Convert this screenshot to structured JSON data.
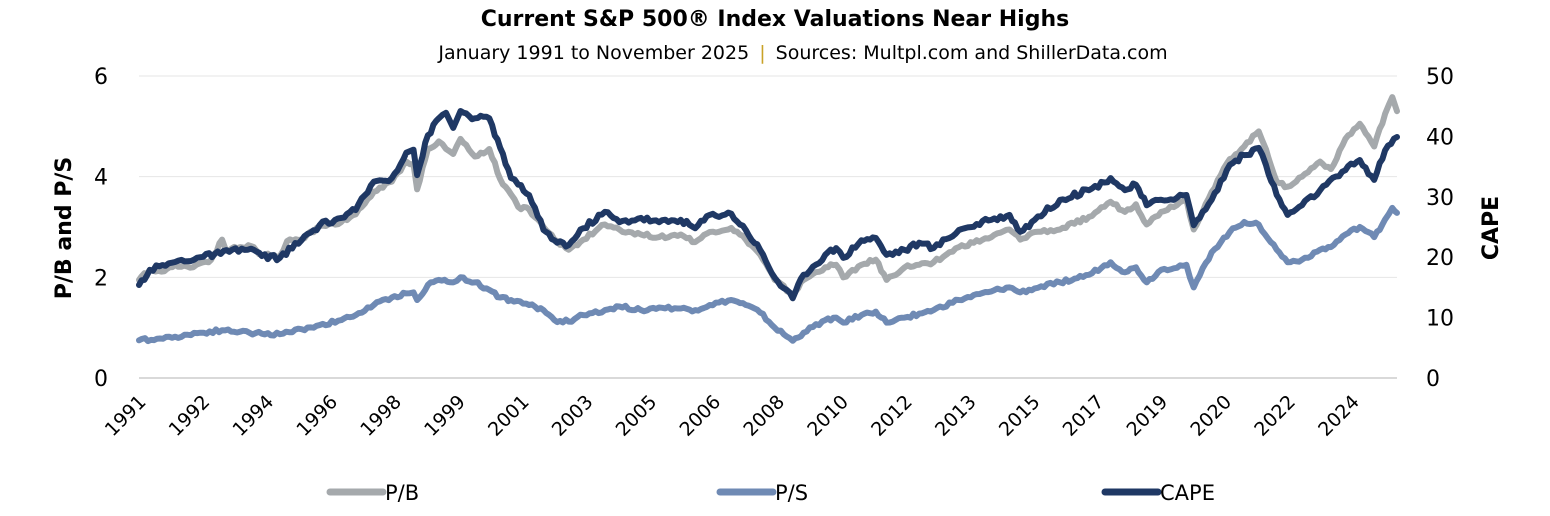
{
  "chart_data": {
    "type": "line",
    "title": "Current S&P 500® Index Valuations Near Highs",
    "subtitle_left": "January 1991 to November 2025",
    "subtitle_separator": "|",
    "subtitle_right": "Sources: Multpl.com and ShillerData.com",
    "ylabel_left": "P/B and P/S",
    "ylabel_right": "CAPE",
    "ylim_left": [
      0,
      6
    ],
    "ylim_right": [
      0,
      50
    ],
    "yticks_left": [
      "0",
      "2",
      "4",
      "6"
    ],
    "yticks_right": [
      "0",
      "10",
      "20",
      "30",
      "40",
      "50"
    ],
    "xlim": [
      1991.0,
      2025.83
    ],
    "xtick_labels": [
      "1991",
      "1992",
      "1994",
      "1996",
      "1998",
      "1999",
      "2001",
      "2003",
      "2005",
      "2006",
      "2008",
      "2010",
      "2012",
      "2013",
      "2015",
      "2017",
      "2019",
      "2020",
      "2022",
      "2024"
    ],
    "grid": true,
    "legend_position": "bottom",
    "colors": {
      "separator": "#C9A227",
      "grid": "#e6e6e6",
      "baseline": "#d9d9d9"
    },
    "series": [
      {
        "name": "P/B",
        "axis": "left",
        "color": "#A5A9AC",
        "points": [
          [
            1991.0,
            1.95
          ],
          [
            1991.3,
            2.15
          ],
          [
            1991.7,
            2.12
          ],
          [
            1992.0,
            2.25
          ],
          [
            1992.5,
            2.2
          ],
          [
            1992.7,
            2.28
          ],
          [
            1993.0,
            2.35
          ],
          [
            1993.3,
            2.75
          ],
          [
            1993.4,
            2.55
          ],
          [
            1993.8,
            2.6
          ],
          [
            1994.1,
            2.62
          ],
          [
            1994.4,
            2.45
          ],
          [
            1994.9,
            2.42
          ],
          [
            1995.1,
            2.72
          ],
          [
            1995.5,
            2.75
          ],
          [
            1996.0,
            3.02
          ],
          [
            1996.6,
            3.1
          ],
          [
            1997.0,
            3.25
          ],
          [
            1997.5,
            3.7
          ],
          [
            1998.0,
            3.9
          ],
          [
            1998.4,
            4.3
          ],
          [
            1998.6,
            4.25
          ],
          [
            1998.7,
            3.75
          ],
          [
            1999.0,
            4.55
          ],
          [
            1999.3,
            4.7
          ],
          [
            1999.5,
            4.55
          ],
          [
            1999.7,
            4.45
          ],
          [
            1999.9,
            4.75
          ],
          [
            2000.3,
            4.4
          ],
          [
            2000.7,
            4.55
          ],
          [
            2001.0,
            3.95
          ],
          [
            2001.3,
            3.65
          ],
          [
            2001.5,
            3.4
          ],
          [
            2001.8,
            3.35
          ],
          [
            2002.2,
            3.0
          ],
          [
            2002.5,
            2.75
          ],
          [
            2002.9,
            2.55
          ],
          [
            2003.3,
            2.75
          ],
          [
            2003.9,
            3.05
          ],
          [
            2004.3,
            2.95
          ],
          [
            2004.9,
            2.85
          ],
          [
            2005.4,
            2.8
          ],
          [
            2006.0,
            2.85
          ],
          [
            2006.4,
            2.7
          ],
          [
            2006.8,
            2.9
          ],
          [
            2007.4,
            2.98
          ],
          [
            2007.8,
            2.75
          ],
          [
            2008.2,
            2.45
          ],
          [
            2008.6,
            1.95
          ],
          [
            2009.1,
            1.65
          ],
          [
            2009.4,
            1.95
          ],
          [
            2010.0,
            2.2
          ],
          [
            2010.3,
            2.25
          ],
          [
            2010.5,
            2.0
          ],
          [
            2011.0,
            2.25
          ],
          [
            2011.4,
            2.35
          ],
          [
            2011.7,
            1.95
          ],
          [
            2012.2,
            2.2
          ],
          [
            2012.6,
            2.25
          ],
          [
            2013.0,
            2.3
          ],
          [
            2013.7,
            2.6
          ],
          [
            2014.6,
            2.8
          ],
          [
            2015.1,
            2.95
          ],
          [
            2015.4,
            2.75
          ],
          [
            2015.8,
            2.9
          ],
          [
            2016.5,
            2.95
          ],
          [
            2017.3,
            3.2
          ],
          [
            2017.9,
            3.5
          ],
          [
            2018.3,
            3.3
          ],
          [
            2018.6,
            3.45
          ],
          [
            2018.9,
            3.05
          ],
          [
            2019.3,
            3.3
          ],
          [
            2020.0,
            3.55
          ],
          [
            2020.2,
            2.95
          ],
          [
            2020.7,
            3.7
          ],
          [
            2021.2,
            4.35
          ],
          [
            2021.6,
            4.6
          ],
          [
            2022.0,
            4.9
          ],
          [
            2022.2,
            4.55
          ],
          [
            2022.5,
            3.9
          ],
          [
            2022.8,
            3.8
          ],
          [
            2023.2,
            4.0
          ],
          [
            2023.7,
            4.3
          ],
          [
            2024.0,
            4.15
          ],
          [
            2024.4,
            4.75
          ],
          [
            2024.8,
            5.05
          ],
          [
            2025.2,
            4.6
          ],
          [
            2025.5,
            5.25
          ],
          [
            2025.7,
            5.58
          ],
          [
            2025.83,
            5.3
          ]
        ]
      },
      {
        "name": "P/S",
        "axis": "left",
        "color": "#6F8AB4",
        "points": [
          [
            1991.0,
            0.75
          ],
          [
            1991.5,
            0.78
          ],
          [
            1992.0,
            0.82
          ],
          [
            1992.7,
            0.9
          ],
          [
            1993.3,
            0.95
          ],
          [
            1993.8,
            0.92
          ],
          [
            1994.4,
            0.88
          ],
          [
            1994.9,
            0.87
          ],
          [
            1995.5,
            0.97
          ],
          [
            1996.0,
            1.05
          ],
          [
            1996.6,
            1.15
          ],
          [
            1997.0,
            1.25
          ],
          [
            1997.5,
            1.45
          ],
          [
            1998.0,
            1.6
          ],
          [
            1998.4,
            1.68
          ],
          [
            1998.6,
            1.7
          ],
          [
            1998.7,
            1.55
          ],
          [
            1999.0,
            1.85
          ],
          [
            1999.3,
            1.95
          ],
          [
            1999.7,
            1.9
          ],
          [
            1999.9,
            2.0
          ],
          [
            2000.3,
            1.9
          ],
          [
            2000.7,
            1.75
          ],
          [
            2001.0,
            1.6
          ],
          [
            2001.3,
            1.55
          ],
          [
            2001.8,
            1.45
          ],
          [
            2002.2,
            1.35
          ],
          [
            2002.5,
            1.15
          ],
          [
            2002.9,
            1.12
          ],
          [
            2003.3,
            1.25
          ],
          [
            2003.9,
            1.35
          ],
          [
            2004.3,
            1.42
          ],
          [
            2004.9,
            1.35
          ],
          [
            2005.4,
            1.4
          ],
          [
            2006.0,
            1.38
          ],
          [
            2006.4,
            1.35
          ],
          [
            2006.8,
            1.45
          ],
          [
            2007.4,
            1.55
          ],
          [
            2007.8,
            1.45
          ],
          [
            2008.2,
            1.3
          ],
          [
            2008.6,
            1.0
          ],
          [
            2009.1,
            0.74
          ],
          [
            2009.4,
            0.9
          ],
          [
            2010.0,
            1.15
          ],
          [
            2010.3,
            1.2
          ],
          [
            2010.5,
            1.1
          ],
          [
            2011.0,
            1.25
          ],
          [
            2011.4,
            1.32
          ],
          [
            2011.7,
            1.1
          ],
          [
            2012.2,
            1.2
          ],
          [
            2012.6,
            1.28
          ],
          [
            2013.0,
            1.35
          ],
          [
            2013.7,
            1.55
          ],
          [
            2014.6,
            1.72
          ],
          [
            2015.1,
            1.8
          ],
          [
            2015.4,
            1.7
          ],
          [
            2015.8,
            1.78
          ],
          [
            2016.5,
            1.9
          ],
          [
            2017.3,
            2.05
          ],
          [
            2017.9,
            2.3
          ],
          [
            2018.3,
            2.1
          ],
          [
            2018.6,
            2.2
          ],
          [
            2018.9,
            1.9
          ],
          [
            2019.3,
            2.15
          ],
          [
            2020.0,
            2.25
          ],
          [
            2020.2,
            1.8
          ],
          [
            2020.7,
            2.5
          ],
          [
            2021.2,
            2.9
          ],
          [
            2021.6,
            3.1
          ],
          [
            2022.0,
            3.05
          ],
          [
            2022.5,
            2.55
          ],
          [
            2022.8,
            2.3
          ],
          [
            2023.2,
            2.35
          ],
          [
            2023.7,
            2.55
          ],
          [
            2024.0,
            2.6
          ],
          [
            2024.4,
            2.85
          ],
          [
            2024.8,
            3.0
          ],
          [
            2025.2,
            2.8
          ],
          [
            2025.5,
            3.15
          ],
          [
            2025.7,
            3.38
          ],
          [
            2025.83,
            3.28
          ]
        ]
      },
      {
        "name": "CAPE",
        "axis": "right",
        "color": "#1F3864",
        "points": [
          [
            1991.0,
            15.4
          ],
          [
            1991.3,
            17.9
          ],
          [
            1992.0,
            19.2
          ],
          [
            1992.7,
            20.0
          ],
          [
            1993.5,
            20.9
          ],
          [
            1994.1,
            21.4
          ],
          [
            1994.4,
            20.2
          ],
          [
            1994.9,
            19.9
          ],
          [
            1995.5,
            22.8
          ],
          [
            1996.0,
            25.3
          ],
          [
            1996.6,
            26.5
          ],
          [
            1997.0,
            27.8
          ],
          [
            1997.5,
            32.5
          ],
          [
            1998.0,
            33.1
          ],
          [
            1998.4,
            37.3
          ],
          [
            1998.6,
            37.8
          ],
          [
            1998.7,
            33.6
          ],
          [
            1999.0,
            40.2
          ],
          [
            1999.3,
            43.0
          ],
          [
            1999.5,
            43.9
          ],
          [
            1999.7,
            41.4
          ],
          [
            1999.9,
            44.2
          ],
          [
            2000.3,
            43.0
          ],
          [
            2000.7,
            43.0
          ],
          [
            2001.0,
            38.1
          ],
          [
            2001.3,
            33.1
          ],
          [
            2001.5,
            32.0
          ],
          [
            2001.8,
            30.3
          ],
          [
            2002.2,
            24.5
          ],
          [
            2002.5,
            22.8
          ],
          [
            2002.9,
            22.0
          ],
          [
            2003.3,
            24.8
          ],
          [
            2003.9,
            27.5
          ],
          [
            2004.3,
            25.8
          ],
          [
            2004.9,
            26.5
          ],
          [
            2005.4,
            25.8
          ],
          [
            2006.0,
            26.2
          ],
          [
            2006.4,
            24.8
          ],
          [
            2006.8,
            27.0
          ],
          [
            2007.4,
            27.2
          ],
          [
            2007.8,
            24.5
          ],
          [
            2008.2,
            21.2
          ],
          [
            2008.6,
            16.6
          ],
          [
            2009.1,
            13.2
          ],
          [
            2009.4,
            17.1
          ],
          [
            2010.0,
            20.4
          ],
          [
            2010.3,
            21.5
          ],
          [
            2010.5,
            19.9
          ],
          [
            2011.0,
            22.8
          ],
          [
            2011.4,
            23.2
          ],
          [
            2011.7,
            20.4
          ],
          [
            2012.2,
            21.2
          ],
          [
            2012.6,
            22.4
          ],
          [
            2013.0,
            21.5
          ],
          [
            2013.7,
            24.5
          ],
          [
            2014.6,
            26.2
          ],
          [
            2015.1,
            27.0
          ],
          [
            2015.4,
            24.2
          ],
          [
            2015.8,
            26.2
          ],
          [
            2016.5,
            29.5
          ],
          [
            2017.3,
            31.1
          ],
          [
            2017.9,
            33.1
          ],
          [
            2018.3,
            31.1
          ],
          [
            2018.6,
            32.0
          ],
          [
            2018.9,
            28.6
          ],
          [
            2019.3,
            29.5
          ],
          [
            2020.0,
            30.3
          ],
          [
            2020.2,
            25.3
          ],
          [
            2020.7,
            29.5
          ],
          [
            2021.2,
            35.3
          ],
          [
            2021.6,
            36.9
          ],
          [
            2022.0,
            38.1
          ],
          [
            2022.2,
            35.3
          ],
          [
            2022.5,
            30.3
          ],
          [
            2022.8,
            27.0
          ],
          [
            2023.2,
            28.6
          ],
          [
            2023.7,
            31.1
          ],
          [
            2024.4,
            34.4
          ],
          [
            2024.8,
            36.1
          ],
          [
            2025.2,
            32.8
          ],
          [
            2025.5,
            37.7
          ],
          [
            2025.83,
            39.9
          ]
        ]
      }
    ]
  }
}
